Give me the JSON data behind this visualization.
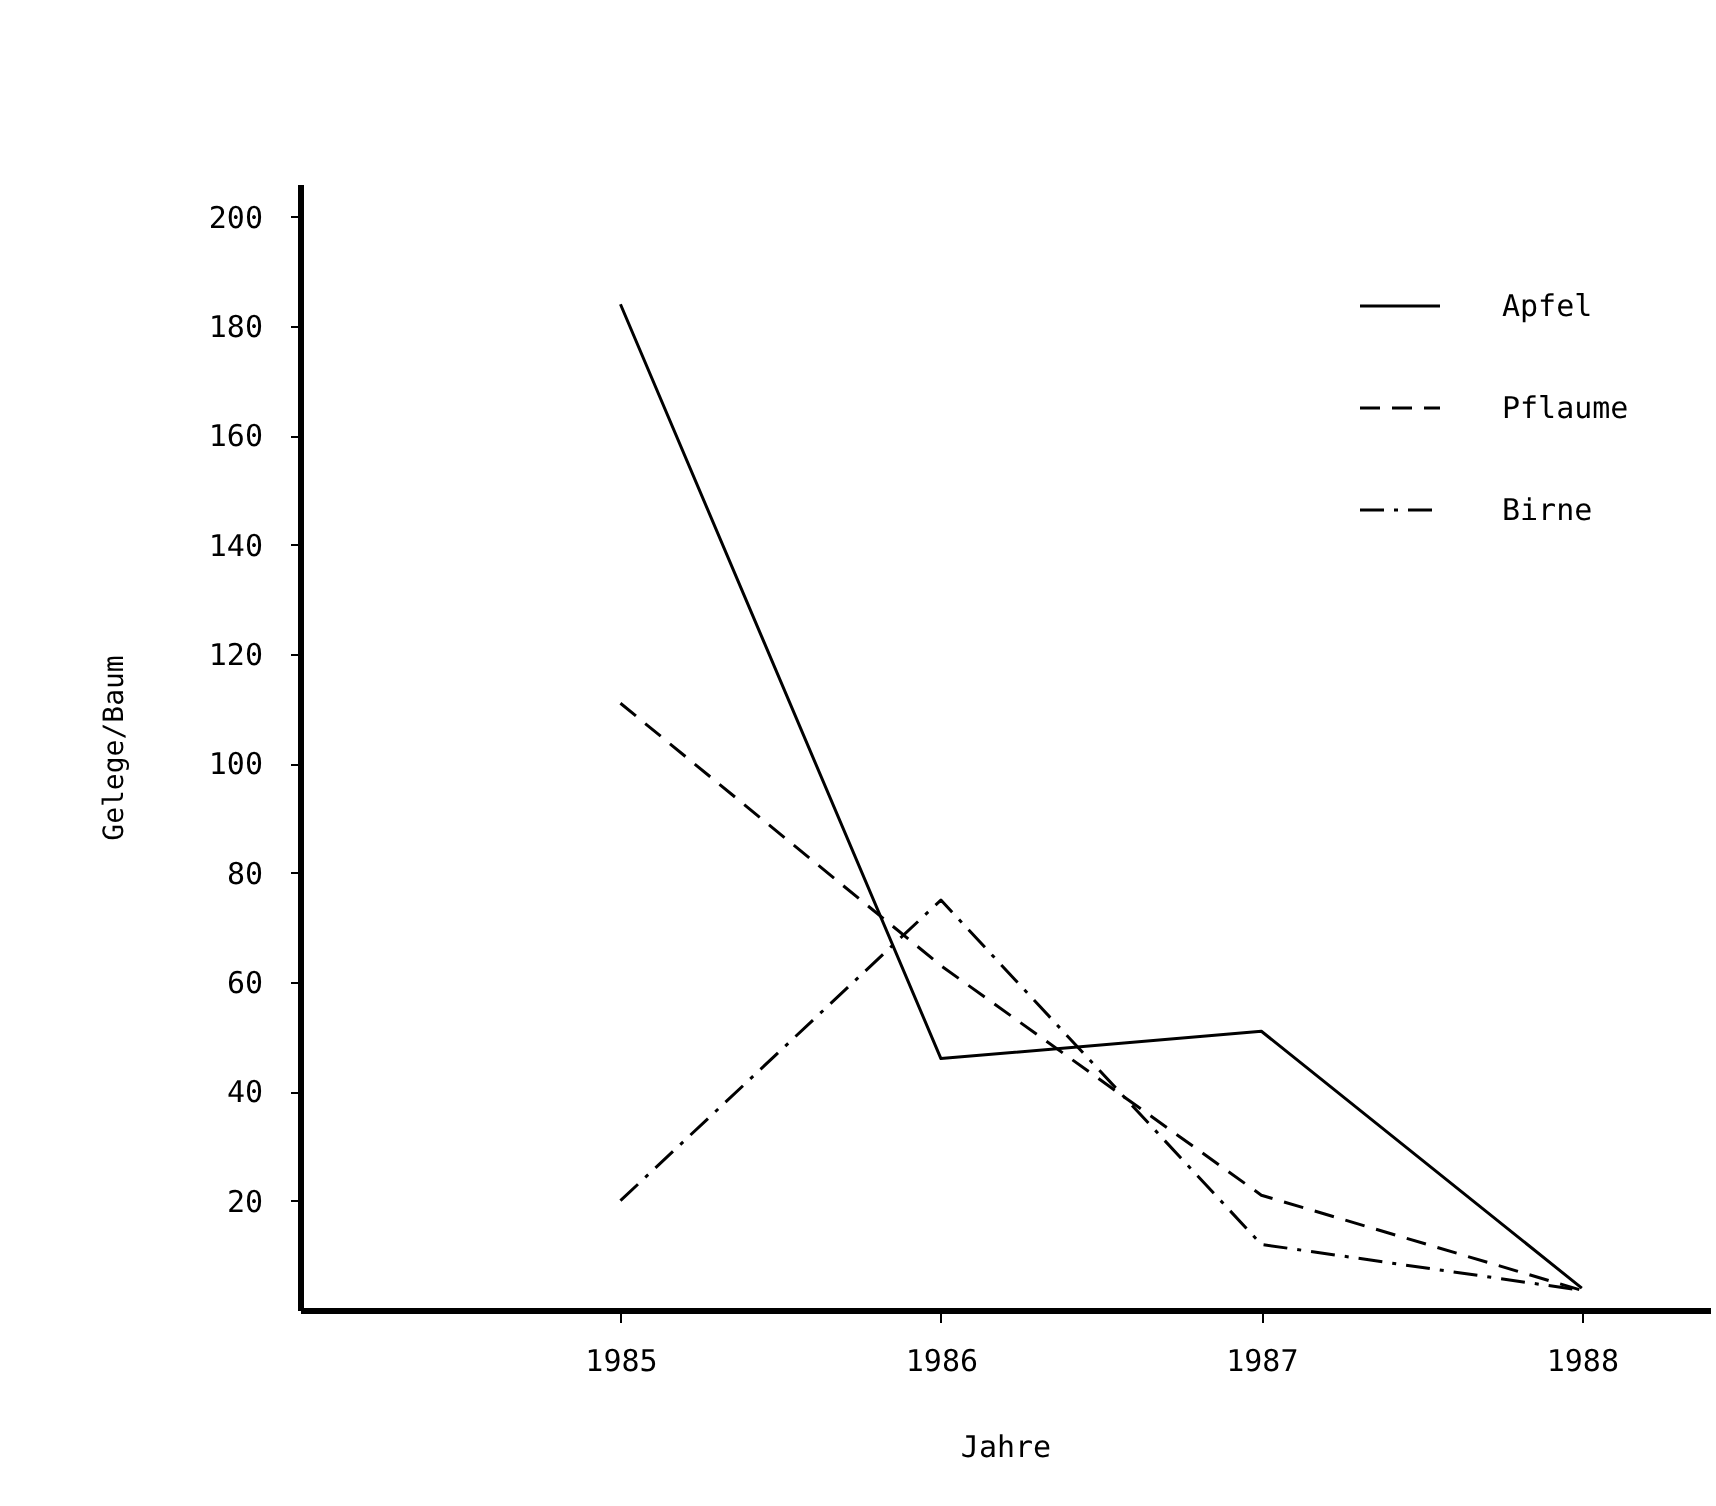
{
  "chart_data": {
    "type": "line",
    "xlabel": "Jahre",
    "ylabel": "Gelege/Baum",
    "x": [
      1985,
      1986,
      1987,
      1988
    ],
    "xlim": [
      1984,
      1988.4
    ],
    "xticks": [
      1985,
      1986,
      1987,
      1988
    ],
    "ylim": [
      0,
      206
    ],
    "yticks": [
      20,
      40,
      60,
      80,
      100,
      120,
      140,
      160,
      180,
      200
    ],
    "grid": false,
    "legend": "top right",
    "marker": "none",
    "series": [
      {
        "name": "Apfel",
        "color": "#000000",
        "line_style": "solid",
        "values": [
          184,
          46,
          51,
          4
        ]
      },
      {
        "name": "Pflaume",
        "color": "#000000",
        "line_style": "dashed",
        "values": [
          111,
          63,
          21,
          3.6
        ]
      },
      {
        "name": "Birne",
        "color": "#000000",
        "line_style": "dashdot",
        "values": [
          20,
          75,
          12,
          3.6
        ]
      }
    ]
  }
}
